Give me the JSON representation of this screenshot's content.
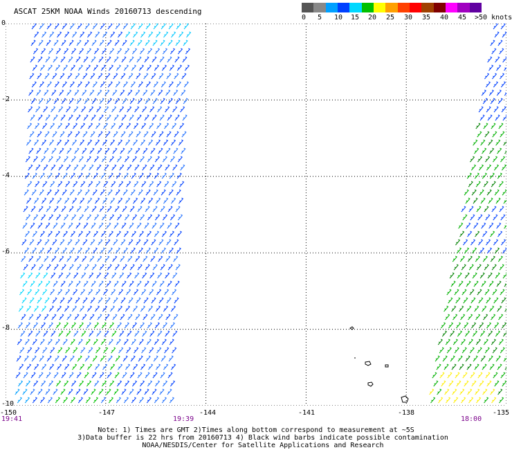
{
  "header": {
    "title": "ASCAT 25KM NOAA Winds 20160713 descending"
  },
  "legend": {
    "labels": [
      "0",
      "5",
      "10",
      "15",
      "20",
      "25",
      "30",
      "35",
      "40",
      "45",
      ">50 knots"
    ],
    "colors": [
      "#555555",
      "#888888",
      "#00a0ff",
      "#0040ff",
      "#00d8ff",
      "#00c000",
      "#ffff00",
      "#ffa000",
      "#ff4000",
      "#ff0000",
      "#a04000",
      "#800000",
      "#ff00ff",
      "#a000c0",
      "#6000a0"
    ]
  },
  "map": {
    "y_ticks": [
      "0",
      "-2",
      "-4",
      "-6",
      "-8",
      "-10"
    ],
    "x_ticks": [
      "-150",
      "-147",
      "-144",
      "-141",
      "-138",
      "-135"
    ],
    "times": [
      "19:41",
      "19:39",
      "18:00"
    ]
  },
  "footer": {
    "line1": "Note: 1) Times are GMT 2)Times along bottom correspond to measurement at ~5S",
    "line2": "3)Data buffer is 22 hrs from 20160713 4) Black wind barbs indicate possible contamination",
    "line3": "NOAA/NESDIS/Center for Satellite Applications and Research"
  }
}
